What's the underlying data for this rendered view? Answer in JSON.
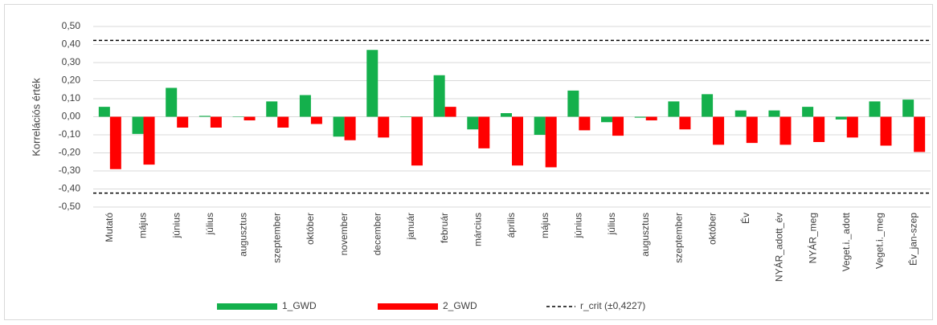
{
  "chart_data": {
    "type": "bar",
    "y_label": "Korrelációs érték",
    "categories": [
      "Mutató",
      "május",
      "június",
      "július",
      "augusztus",
      "szeptember",
      "október",
      "november",
      "december",
      "január",
      "február",
      "március",
      "április",
      "május",
      "június",
      "július",
      "augusztus",
      "szeptember",
      "október",
      "Év",
      "NYÁR_adott_év",
      "NYÁR_meg",
      "Veget.i._adott",
      "Veget.i._meg",
      "Év_jan-szep"
    ],
    "series": [
      {
        "name": "1_GWD",
        "color": "#14b04c",
        "values": [
          0.055,
          -0.095,
          0.16,
          0.005,
          0,
          0.085,
          0.12,
          -0.11,
          0.37,
          0,
          0.23,
          -0.07,
          0.02,
          -0.1,
          0.145,
          -0.03,
          -0.005,
          0.085,
          0.125,
          0.035,
          0.035,
          0.055,
          -0.015,
          0.085,
          0.095
        ]
      },
      {
        "name": "2_GWD",
        "color": "#ff0000",
        "values": [
          -0.29,
          -0.265,
          -0.06,
          -0.06,
          -0.02,
          -0.06,
          -0.04,
          -0.13,
          -0.115,
          -0.27,
          0.055,
          -0.175,
          -0.27,
          -0.28,
          -0.075,
          -0.105,
          -0.02,
          -0.07,
          -0.155,
          -0.145,
          -0.155,
          -0.14,
          -0.115,
          -0.16,
          -0.195
        ]
      }
    ],
    "reference": {
      "name": "r_crit (±0,4227)",
      "color": "#000000",
      "values": [
        0.4227,
        -0.4227
      ]
    },
    "ylim": [
      -0.5,
      0.5
    ],
    "yticks": [
      {
        "value": -0.5,
        "label": "-0,50"
      },
      {
        "value": -0.4,
        "label": "-0,40"
      },
      {
        "value": -0.3,
        "label": "-0,30"
      },
      {
        "value": -0.2,
        "label": "-0,20"
      },
      {
        "value": -0.1,
        "label": "-0,10"
      },
      {
        "value": 0,
        "label": "0,00"
      },
      {
        "value": 0.1,
        "label": "0,10"
      },
      {
        "value": 0.2,
        "label": "0,20"
      },
      {
        "value": 0.3,
        "label": "0,30"
      },
      {
        "value": 0.4,
        "label": "0,40"
      },
      {
        "value": 0.5,
        "label": "0,50"
      }
    ],
    "grid": true
  }
}
